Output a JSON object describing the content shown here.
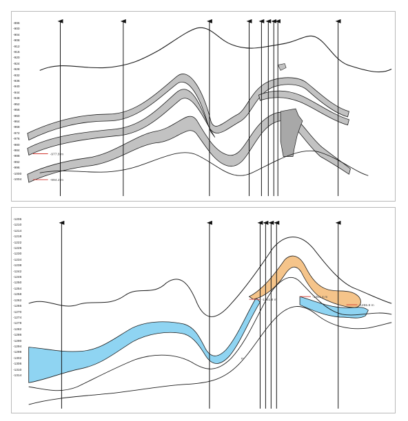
{
  "top_panel": {
    "scale_labels": [
      "-896",
      "-900",
      "-904",
      "-908",
      "-912",
      "-916",
      "-920",
      "-924",
      "-928",
      "-932",
      "-936",
      "-940",
      "-944",
      "-948",
      "-952",
      "-956",
      "-960",
      "-964",
      "-968",
      "-972",
      "-976",
      "-980",
      "-984",
      "-988",
      "-992",
      "-996",
      "-1000",
      "-1004"
    ],
    "annotations": [
      "-977.8 m",
      "-994.2 m"
    ],
    "fill_color": "#c2c2c2",
    "line_color": "#1a1a1a"
  },
  "bottom_panel": {
    "scale_labels": [
      "-1206",
      "-1210",
      "-1214",
      "-1218",
      "-1222",
      "-1226",
      "-1230",
      "-1234",
      "-1238",
      "-1242",
      "-1246",
      "-1250",
      "-1254",
      "-1258",
      "-1262",
      "-1266",
      "-1270",
      "-1274",
      "-1278",
      "-1282",
      "-1286",
      "-1290",
      "-1294",
      "-1298",
      "-1302",
      "-1306",
      "-1310",
      "-1314"
    ],
    "annotations": [
      "-1251.8 m",
      "-1251.4 m",
      "-1255.8 m",
      "m"
    ],
    "water_color": "#8fd4f2",
    "oil_color": "#f5c48a",
    "line_color": "#1a1a1a"
  }
}
